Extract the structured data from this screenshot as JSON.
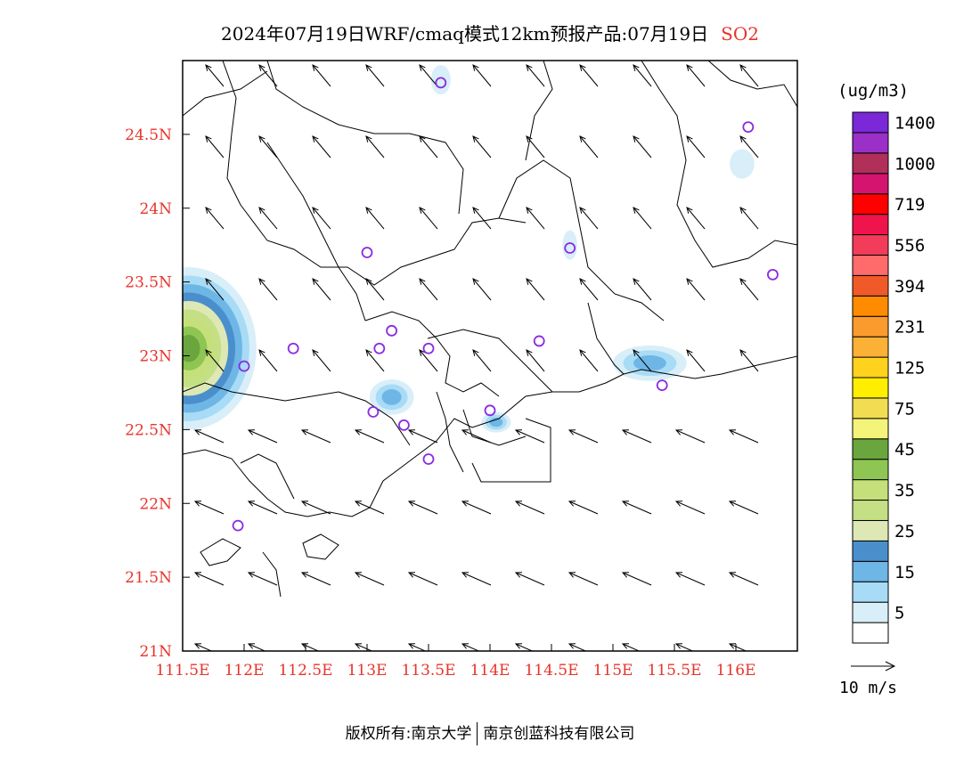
{
  "title": {
    "main": "2024年07月19日WRF/cmaq模式12km预报产品:07月19日",
    "species": "SO2"
  },
  "footer": {
    "copyright": "版权所有:南京大学",
    "company": "南京创蓝科技有限公司"
  },
  "map": {
    "lon_range": [
      111.5,
      116.5
    ],
    "lat_range": [
      21.0,
      25.0
    ],
    "x_ticks": [
      {
        "value": 111.5,
        "label": "111.5E"
      },
      {
        "value": 112.0,
        "label": "112E"
      },
      {
        "value": 112.5,
        "label": "112.5E"
      },
      {
        "value": 113.0,
        "label": "113E"
      },
      {
        "value": 113.5,
        "label": "113.5E"
      },
      {
        "value": 114.0,
        "label": "114E"
      },
      {
        "value": 114.5,
        "label": "114.5E"
      },
      {
        "value": 115.0,
        "label": "115E"
      },
      {
        "value": 115.5,
        "label": "115.5E"
      },
      {
        "value": 116.0,
        "label": "116E"
      }
    ],
    "y_ticks": [
      {
        "value": 21.0,
        "label": "21N"
      },
      {
        "value": 21.5,
        "label": "21.5N"
      },
      {
        "value": 22.0,
        "label": "22N"
      },
      {
        "value": 22.5,
        "label": "22.5N"
      },
      {
        "value": 23.0,
        "label": "23N"
      },
      {
        "value": 23.5,
        "label": "23.5N"
      },
      {
        "value": 24.0,
        "label": "24N"
      },
      {
        "value": 24.5,
        "label": "24.5N"
      }
    ],
    "stations": [
      {
        "lon": 113.6,
        "lat": 24.85
      },
      {
        "lon": 116.1,
        "lat": 24.55
      },
      {
        "lon": 113.0,
        "lat": 23.7
      },
      {
        "lon": 114.65,
        "lat": 23.73
      },
      {
        "lon": 116.3,
        "lat": 23.55
      },
      {
        "lon": 113.2,
        "lat": 23.17
      },
      {
        "lon": 113.1,
        "lat": 23.05
      },
      {
        "lon": 113.5,
        "lat": 23.05
      },
      {
        "lon": 114.4,
        "lat": 23.1
      },
      {
        "lon": 112.4,
        "lat": 23.05
      },
      {
        "lon": 112.0,
        "lat": 22.93
      },
      {
        "lon": 115.4,
        "lat": 22.8
      },
      {
        "lon": 113.05,
        "lat": 22.62
      },
      {
        "lon": 113.3,
        "lat": 22.53
      },
      {
        "lon": 114.0,
        "lat": 22.63
      },
      {
        "lon": 113.5,
        "lat": 22.3
      },
      {
        "lon": 111.95,
        "lat": 21.85
      }
    ],
    "so2_plumes": [
      {
        "lon": 111.55,
        "lat": 23.05,
        "rlon": 0.55,
        "rlat": 0.55,
        "level": "45"
      },
      {
        "lon": 113.2,
        "lat": 22.72,
        "rlon": 0.18,
        "rlat": 0.12,
        "level": "15"
      },
      {
        "lon": 115.3,
        "lat": 22.95,
        "rlon": 0.3,
        "rlat": 0.12,
        "level": "15"
      },
      {
        "lon": 114.05,
        "lat": 22.55,
        "rlon": 0.12,
        "rlat": 0.07,
        "level": "15"
      },
      {
        "lon": 113.6,
        "lat": 24.87,
        "rlon": 0.08,
        "rlat": 0.1,
        "level": "5"
      },
      {
        "lon": 116.05,
        "lat": 24.3,
        "rlon": 0.1,
        "rlat": 0.1,
        "level": "5"
      },
      {
        "lon": 114.65,
        "lat": 23.75,
        "rlon": 0.06,
        "rlat": 0.1,
        "level": "5"
      }
    ]
  },
  "colorbar": {
    "unit": "(ug/m3)",
    "levels": [
      {
        "color": "#ffffff",
        "label": ""
      },
      {
        "color": "#d8eef8",
        "label": "5"
      },
      {
        "color": "#a8dbf5",
        "label": ""
      },
      {
        "color": "#6eb6e6",
        "label": "15"
      },
      {
        "color": "#4a8fcb",
        "label": ""
      },
      {
        "color": "#dde8b5",
        "label": "25"
      },
      {
        "color": "#c4df84",
        "label": ""
      },
      {
        "color": "#c5e07a",
        "label": "35"
      },
      {
        "color": "#8ec553",
        "label": ""
      },
      {
        "color": "#6aa63d",
        "label": "45"
      },
      {
        "color": "#f4f47a",
        "label": ""
      },
      {
        "color": "#f2dd52",
        "label": "75"
      },
      {
        "color": "#ffee00",
        "label": ""
      },
      {
        "color": "#ffd21e",
        "label": "125"
      },
      {
        "color": "#fbb036",
        "label": ""
      },
      {
        "color": "#fb9b2d",
        "label": "231"
      },
      {
        "color": "#ff8c00",
        "label": ""
      },
      {
        "color": "#f05a28",
        "label": "394"
      },
      {
        "color": "#ff6b6b",
        "label": ""
      },
      {
        "color": "#f23c5a",
        "label": "556"
      },
      {
        "color": "#f0144c",
        "label": ""
      },
      {
        "color": "#ff0000",
        "label": "719"
      },
      {
        "color": "#d4146e",
        "label": ""
      },
      {
        "color": "#b0305a",
        "label": "1000"
      },
      {
        "color": "#9a30c8",
        "label": ""
      },
      {
        "color": "#7a28d8",
        "label": "1400"
      }
    ]
  },
  "wind_legend": {
    "label": "10 m/s"
  },
  "colors": {
    "tick_labels": "#e8332a",
    "species": "#e8332a",
    "station": "#8a2be2"
  }
}
